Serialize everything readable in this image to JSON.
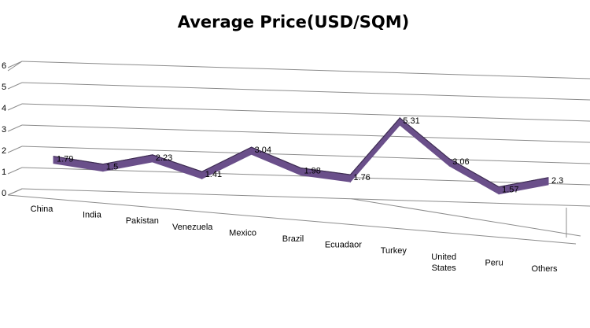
{
  "chart_data": {
    "type": "line",
    "title": "Average Price(USD/SQM)",
    "categories": [
      "China",
      "India",
      "Pakistan",
      "Venezuela",
      "Mexico",
      "Brazil",
      "Ecuadaor",
      "Turkey",
      "United States",
      "Peru",
      "Others"
    ],
    "series": [
      {
        "values": [
          1.79,
          1.5,
          2.23,
          1.41,
          3.04,
          1.98,
          1.76,
          5.31,
          3.06,
          1.57,
          2.3
        ]
      }
    ],
    "ylim": [
      0,
      6
    ],
    "yticks": [
      "0",
      "1",
      "2",
      "3",
      "4",
      "5",
      "6"
    ],
    "grid": true,
    "legend": "none",
    "style": "3d-line",
    "colors": {
      "line": "#6a4f8a",
      "line_dark": "#3e2d52",
      "grid": "#8c8c8c"
    }
  }
}
